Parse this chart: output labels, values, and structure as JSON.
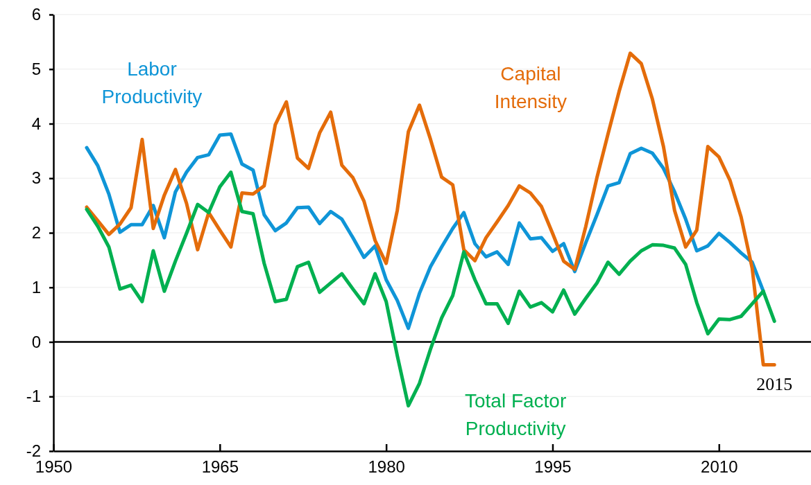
{
  "chart_data": {
    "type": "line",
    "x": [
      1953,
      1954,
      1955,
      1956,
      1957,
      1958,
      1959,
      1960,
      1961,
      1962,
      1963,
      1964,
      1965,
      1966,
      1967,
      1968,
      1969,
      1970,
      1971,
      1972,
      1973,
      1974,
      1975,
      1976,
      1977,
      1978,
      1979,
      1980,
      1981,
      1982,
      1983,
      1984,
      1985,
      1986,
      1987,
      1988,
      1989,
      1990,
      1991,
      1992,
      1993,
      1994,
      1995,
      1996,
      1997,
      1998,
      1999,
      2000,
      2001,
      2002,
      2003,
      2004,
      2005,
      2006,
      2007,
      2008,
      2009,
      2010,
      2011,
      2012,
      2013,
      2014,
      2015
    ],
    "series": [
      {
        "name": "Labor Productivity",
        "color": "#0f95d7",
        "values": [
          3.56,
          3.23,
          2.71,
          2.01,
          2.15,
          2.15,
          2.5,
          1.91,
          2.75,
          3.11,
          3.38,
          3.43,
          3.79,
          3.81,
          3.26,
          3.15,
          2.33,
          2.04,
          2.18,
          2.46,
          2.47,
          2.17,
          2.39,
          2.25,
          1.91,
          1.55,
          1.76,
          1.14,
          0.76,
          0.25,
          0.89,
          1.38,
          1.74,
          2.08,
          2.37,
          1.8,
          1.56,
          1.65,
          1.42,
          2.18,
          1.89,
          1.91,
          1.66,
          1.8,
          1.29,
          1.82,
          2.33,
          2.86,
          2.92,
          3.45,
          3.55,
          3.46,
          3.18,
          2.75,
          2.25,
          1.67,
          1.76,
          1.99,
          1.82,
          1.63,
          1.46,
          0.93,
          null
        ]
      },
      {
        "name": "Capital Intensity",
        "color": "#e46c0a",
        "values": [
          2.47,
          2.22,
          1.97,
          2.16,
          2.46,
          3.71,
          2.08,
          2.69,
          3.16,
          2.54,
          1.69,
          2.37,
          2.05,
          1.74,
          2.73,
          2.71,
          2.86,
          3.98,
          4.4,
          3.37,
          3.18,
          3.83,
          4.21,
          3.24,
          3.01,
          2.58,
          1.86,
          1.44,
          2.41,
          3.85,
          4.34,
          3.71,
          3.02,
          2.88,
          1.69,
          1.49,
          1.91,
          2.2,
          2.5,
          2.86,
          2.73,
          2.48,
          1.99,
          1.48,
          1.33,
          2.12,
          3.01,
          3.81,
          4.59,
          5.29,
          5.1,
          4.45,
          3.58,
          2.41,
          1.74,
          2.05,
          3.58,
          3.39,
          2.96,
          2.29,
          1.35,
          -0.42,
          -0.42
        ]
      },
      {
        "name": "Total Factor Productivity",
        "color": "#00b050",
        "values": [
          2.43,
          2.12,
          1.74,
          0.97,
          1.04,
          0.74,
          1.67,
          0.93,
          1.48,
          1.99,
          2.52,
          2.37,
          2.84,
          3.11,
          2.39,
          2.35,
          1.44,
          0.74,
          0.78,
          1.38,
          1.46,
          0.91,
          1.08,
          1.25,
          0.97,
          0.7,
          1.25,
          0.74,
          -0.25,
          -1.17,
          -0.76,
          -0.13,
          0.44,
          0.85,
          1.65,
          1.14,
          0.7,
          0.7,
          0.34,
          0.93,
          0.64,
          0.72,
          0.55,
          0.95,
          0.51,
          0.8,
          1.08,
          1.46,
          1.24,
          1.48,
          1.67,
          1.78,
          1.77,
          1.72,
          1.42,
          0.72,
          0.15,
          0.42,
          0.41,
          0.47,
          0.7,
          0.93,
          0.38
        ]
      }
    ],
    "xlim": [
      1950,
      2018.3
    ],
    "xticks": [
      1950,
      1965,
      1980,
      1995,
      2010
    ],
    "ylim": [
      -2,
      6
    ],
    "yticks": [
      -2,
      -1,
      0,
      1,
      2,
      3,
      4,
      5,
      6
    ],
    "grid": "y",
    "line_style": "solid",
    "ref_lines": [
      {
        "axis": "y",
        "value": 0,
        "color": "#000000"
      }
    ],
    "annotations": [
      {
        "text": "2015",
        "x": 2015,
        "y": -0.42
      }
    ]
  }
}
